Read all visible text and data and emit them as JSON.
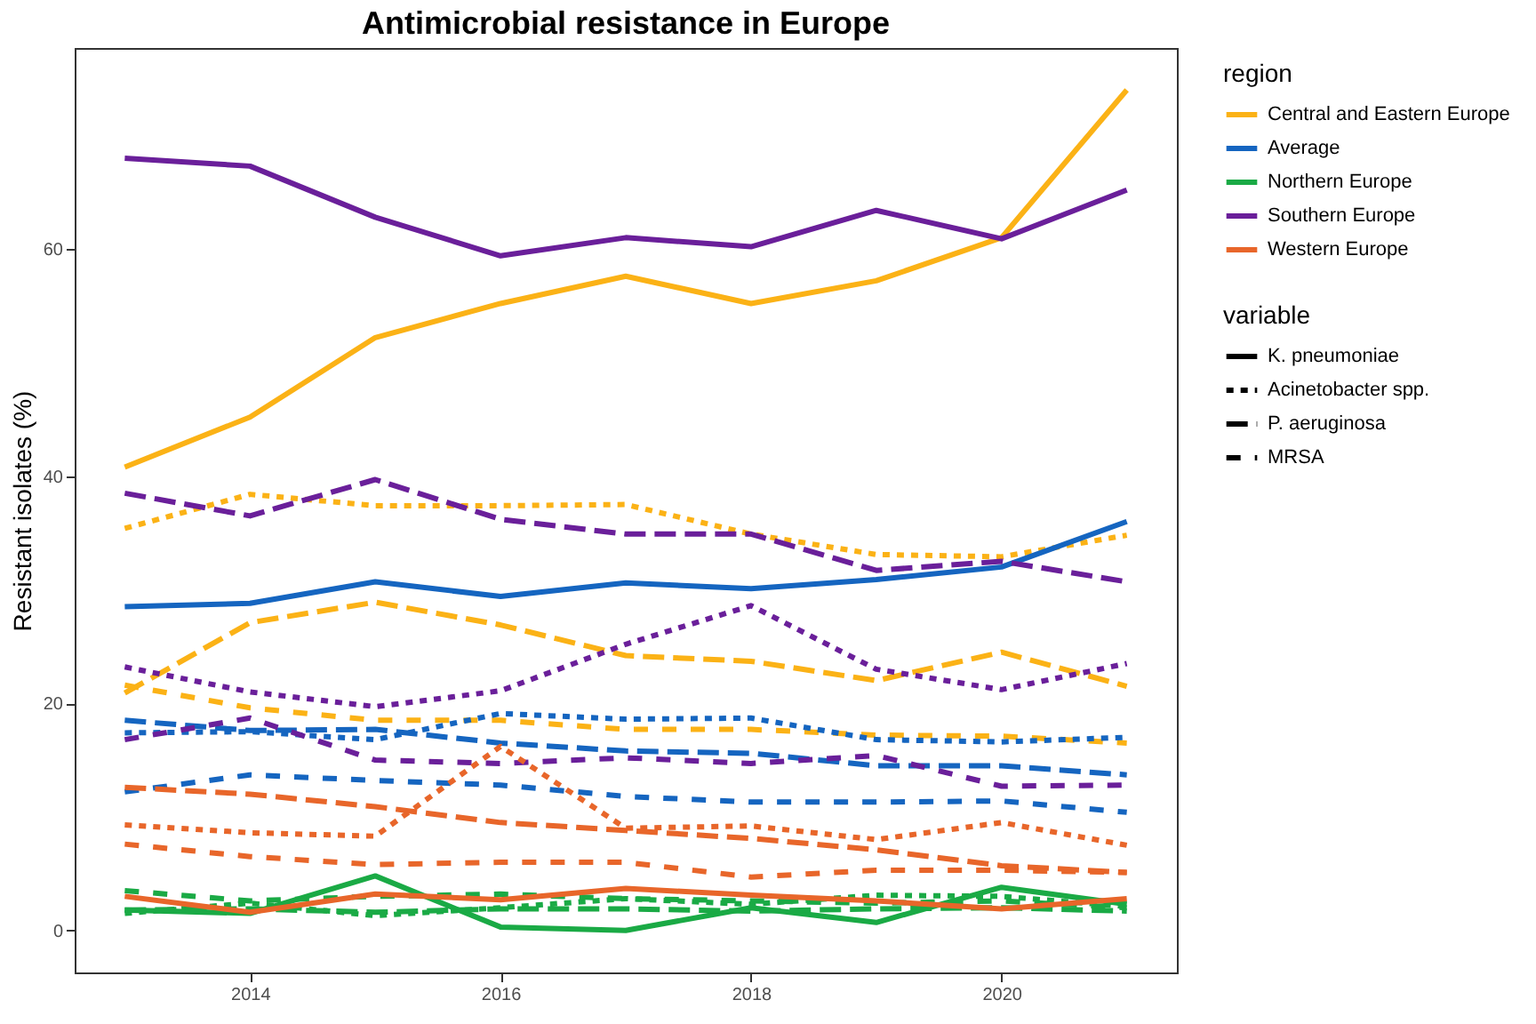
{
  "chart_data": {
    "type": "line",
    "title": "Antimicrobial resistance in Europe",
    "ylabel": "Resistant isolates (%)",
    "legend_title": [
      "region",
      "variable"
    ],
    "annotations": [
      "K. pneumoniae",
      "Acinetobacter spp.",
      "P. aeruginosa",
      "MRSA"
    ],
    "x": [
      2013,
      2014,
      2015,
      2016,
      2017,
      2018,
      2019,
      2020,
      2021
    ],
    "xlim": [
      2012.6,
      2021.4
    ],
    "xticks": [
      2014,
      2016,
      2018,
      2020
    ],
    "ylim": [
      -3.7,
      77.7
    ],
    "yticks": [
      0,
      20,
      40,
      60
    ],
    "grid": false,
    "legend": "right",
    "marker": "none",
    "series": [
      {
        "name": "Central and Eastern Europe",
        "line_style": "solid",
        "color": "#fbb216",
        "values": [
          40.8,
          45.2,
          52.2,
          55.2,
          57.6,
          55.2,
          57.2,
          61.0,
          74.0
        ]
      },
      {
        "line_style": "dotted",
        "color": "#fbb216",
        "values": [
          35.4,
          38.4,
          37.4,
          37.4,
          37.5,
          34.9,
          33.1,
          32.9,
          34.8
        ]
      },
      {
        "line_style": "longdash",
        "color": "#fbb216",
        "values": [
          20.9,
          27.1,
          28.9,
          26.9,
          24.2,
          23.7,
          22.0,
          24.5,
          21.5
        ]
      },
      {
        "line_style": "dashed",
        "color": "#fbb216",
        "values": [
          21.6,
          19.6,
          18.5,
          18.5,
          17.7,
          17.7,
          17.2,
          17.1,
          16.5
        ]
      },
      {
        "name": "Average",
        "line_style": "solid",
        "color": "#1565c0",
        "values": [
          28.5,
          28.8,
          30.7,
          29.4,
          30.6,
          30.1,
          30.9,
          32.0,
          36.0
        ]
      },
      {
        "line_style": "dotted",
        "color": "#1565c0",
        "values": [
          17.4,
          17.5,
          16.8,
          19.1,
          18.6,
          18.7,
          16.8,
          16.6,
          17.0
        ]
      },
      {
        "line_style": "longdash",
        "color": "#1565c0",
        "values": [
          18.5,
          17.6,
          17.7,
          16.5,
          15.8,
          15.6,
          14.5,
          14.5,
          13.7
        ]
      },
      {
        "line_style": "dashed",
        "color": "#1565c0",
        "values": [
          12.2,
          13.7,
          13.2,
          12.8,
          11.8,
          11.3,
          11.3,
          11.4,
          10.4
        ]
      },
      {
        "name": "Northern Europe",
        "line_style": "solid",
        "color": "#1aaa45",
        "values": [
          1.8,
          1.5,
          4.8,
          0.3,
          0.0,
          2.0,
          0.7,
          3.8,
          2.3
        ]
      },
      {
        "line_style": "dotted",
        "color": "#1aaa45",
        "values": [
          1.5,
          2.4,
          1.3,
          2.0,
          2.8,
          2.3,
          3.1,
          3.0,
          2.1
        ]
      },
      {
        "line_style": "longdash",
        "color": "#1aaa45",
        "values": [
          1.8,
          1.9,
          1.6,
          1.9,
          1.9,
          1.7,
          1.9,
          2.0,
          1.7
        ]
      },
      {
        "line_style": "dashed",
        "color": "#1aaa45",
        "values": [
          3.5,
          2.6,
          3.0,
          3.2,
          2.8,
          2.6,
          2.4,
          2.6,
          2.0
        ]
      },
      {
        "name": "Southern Europe",
        "line_style": "solid",
        "color": "#6a1f9a",
        "values": [
          68.0,
          67.3,
          62.8,
          59.4,
          61.0,
          60.2,
          63.4,
          60.9,
          65.2
        ]
      },
      {
        "line_style": "dotted",
        "color": "#6a1f9a",
        "values": [
          23.2,
          21.0,
          19.7,
          21.1,
          25.2,
          28.6,
          23.0,
          21.2,
          23.5
        ]
      },
      {
        "line_style": "longdash",
        "color": "#6a1f9a",
        "values": [
          38.5,
          36.5,
          39.7,
          36.2,
          34.9,
          34.9,
          31.7,
          32.5,
          30.7
        ]
      },
      {
        "line_style": "dashed",
        "color": "#6a1f9a",
        "values": [
          16.8,
          18.7,
          15.0,
          14.7,
          15.2,
          14.7,
          15.4,
          12.7,
          12.8
        ]
      },
      {
        "name": "Western Europe",
        "line_style": "solid",
        "color": "#e8662a",
        "values": [
          3.0,
          1.6,
          3.2,
          2.7,
          3.7,
          3.1,
          2.6,
          1.9,
          2.8
        ]
      },
      {
        "line_style": "dotted",
        "color": "#e8662a",
        "values": [
          9.3,
          8.6,
          8.3,
          16.2,
          9.0,
          9.2,
          8.0,
          9.5,
          7.5
        ]
      },
      {
        "line_style": "longdash",
        "color": "#e8662a",
        "values": [
          12.6,
          12.0,
          10.9,
          9.5,
          8.8,
          8.1,
          7.1,
          5.7,
          5.1
        ]
      },
      {
        "line_style": "dashed",
        "color": "#e8662a",
        "values": [
          7.6,
          6.5,
          5.8,
          6.0,
          6.0,
          4.7,
          5.3,
          5.3,
          5.1
        ]
      }
    ]
  }
}
